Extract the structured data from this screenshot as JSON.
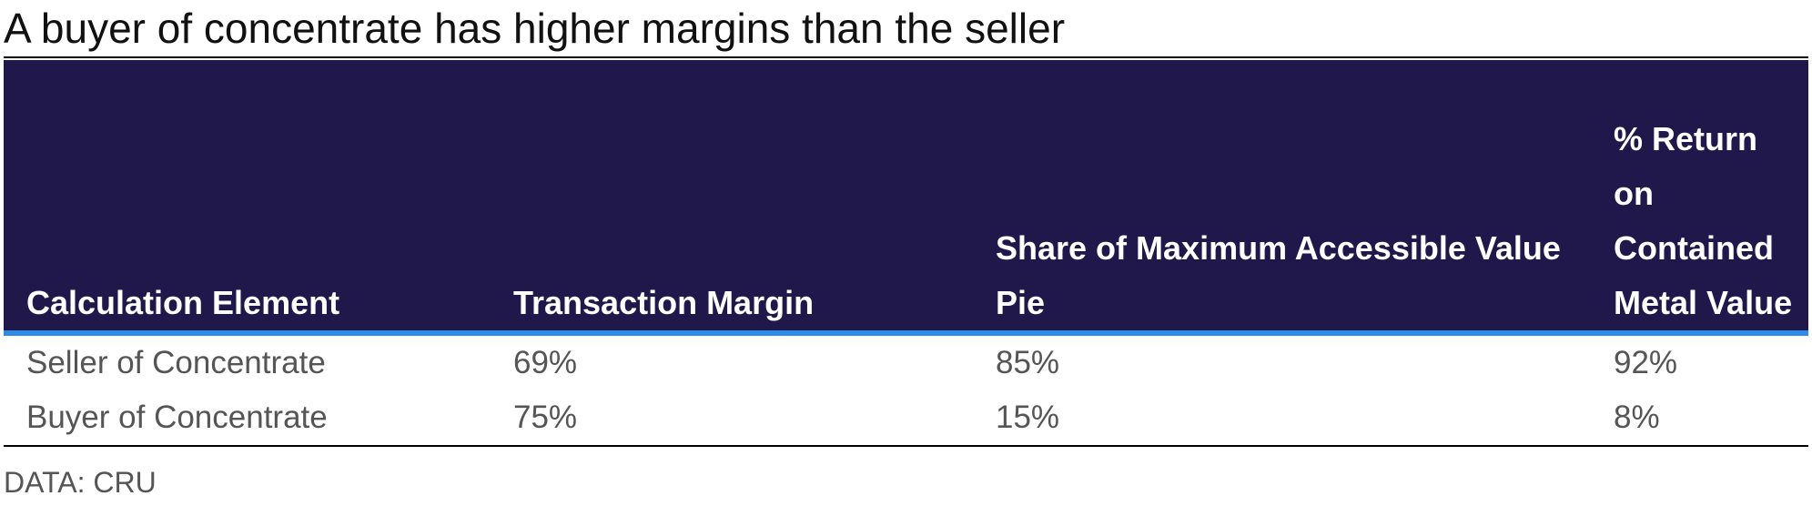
{
  "chart_data": {
    "type": "table",
    "title": "A buyer of concentrate has higher margins than the seller",
    "columns": [
      "Calculation Element",
      "Transaction Margin",
      "Share of Maximum Accessible Value Pie",
      "% Return on Contained Metal Value"
    ],
    "rows": [
      [
        "Seller of Concentrate",
        "69%",
        "85%",
        "92%"
      ],
      [
        "Buyer of Concentrate",
        "75%",
        "15%",
        "8%"
      ]
    ],
    "source": "DATA: CRU",
    "header_color": "#20184a",
    "header_rule_color": "#2d8ae8"
  }
}
